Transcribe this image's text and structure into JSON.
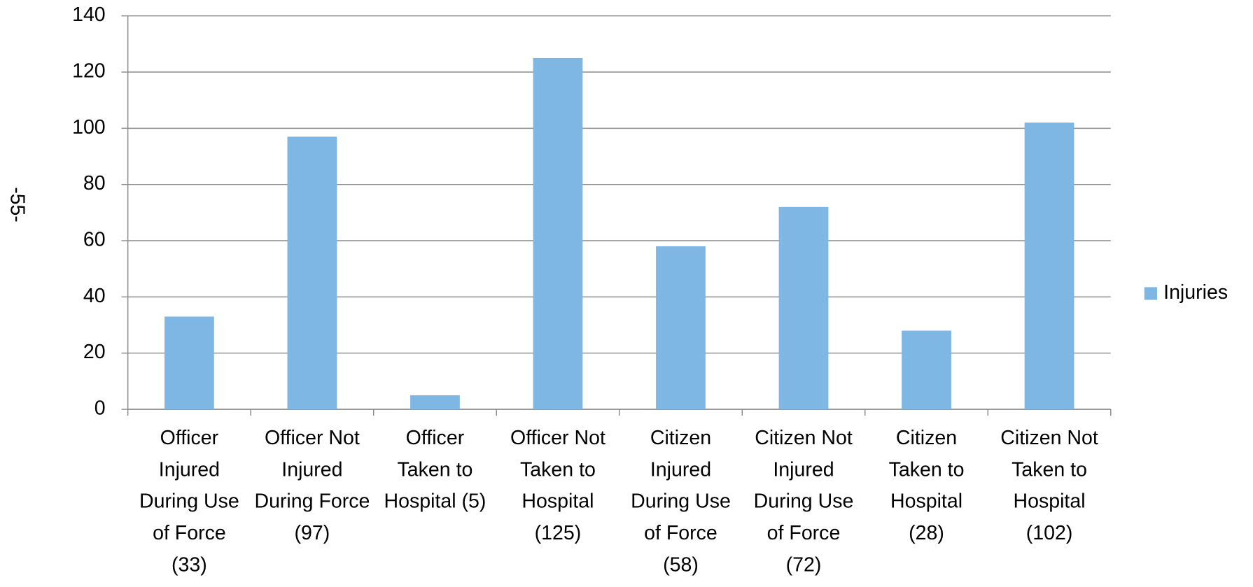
{
  "page_label": "-55-",
  "chart_data": {
    "type": "bar",
    "categories": [
      "Officer Injured During Use of Force (33)",
      "Officer Not Injured During Force (97)",
      "Officer Taken to Hospital (5)",
      "Officer Not Taken to Hospital (125)",
      "Citizen Injured During Use of Force (58)",
      "Citizen Not Injured During Use of Force (72)",
      "Citizen Taken to Hospital (28)",
      "Citizen Not Taken to Hospital (102)"
    ],
    "series": [
      {
        "name": "Injuries",
        "color": "#7eb6e4",
        "values": [
          33,
          97,
          5,
          125,
          58,
          72,
          28,
          102
        ]
      }
    ],
    "ylim": [
      0,
      140
    ],
    "yticks": [
      0,
      20,
      40,
      60,
      80,
      100,
      120,
      140
    ],
    "grid": true,
    "legend": "right"
  }
}
